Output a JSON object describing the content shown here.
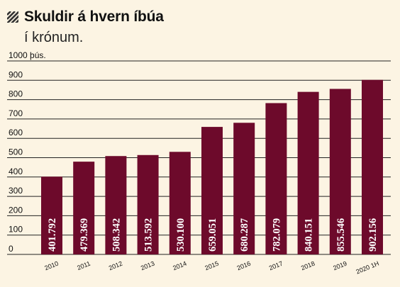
{
  "header": {
    "title": "Skuldir á hvern íbúa",
    "subtitle": "í krónum."
  },
  "colors": {
    "background": "#fcf4e3",
    "bar": "#6d0a2b",
    "gridline": "#222222",
    "hatch_icon": "#333333"
  },
  "icons": {
    "header_icon": "diagonal-hatch-icon"
  },
  "chart_data": {
    "type": "bar",
    "title": "Skuldir á hvern íbúa",
    "subtitle": "í krónum.",
    "categories": [
      "2010",
      "2011",
      "2012",
      "2013",
      "2014",
      "2015",
      "2016",
      "2017",
      "2018",
      "2019",
      "2020 1H"
    ],
    "values": [
      401792,
      479369,
      508342,
      513592,
      530100,
      659051,
      680287,
      782079,
      840151,
      855546,
      902156
    ],
    "value_labels": [
      "401.792",
      "479.369",
      "508.342",
      "513.592",
      "530.100",
      "659.051",
      "680.287",
      "782.079",
      "840.151",
      "855.546",
      "902.156"
    ],
    "unit_divisor": 1000,
    "ylim": [
      0,
      1000
    ],
    "yticks": [
      0,
      100,
      200,
      300,
      400,
      500,
      600,
      700,
      800,
      900,
      1000
    ],
    "ytick_labels": [
      "0",
      "100",
      "200",
      "300",
      "400",
      "500",
      "600",
      "700",
      "800",
      "900",
      "1000 þús."
    ],
    "grid": true,
    "legend": "none",
    "category_labels_rotated": true,
    "value_labels_rotated": true
  }
}
